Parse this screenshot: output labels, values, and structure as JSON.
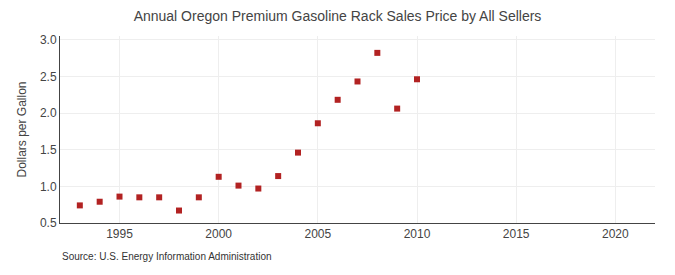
{
  "chart_data": {
    "type": "scatter",
    "title": "Annual Oregon Premium Gasoline Rack Sales Price by All Sellers",
    "y_label": "Dollars per Gallon",
    "annotations": [
      "Source: U.S. Energy Information Administration"
    ],
    "x": [
      1993,
      1994,
      1995,
      1996,
      1997,
      1998,
      1999,
      2000,
      2001,
      2002,
      2003,
      2004,
      2005,
      2006,
      2007,
      2008,
      2009,
      2010
    ],
    "values": [
      0.74,
      0.79,
      0.86,
      0.85,
      0.85,
      0.67,
      0.85,
      1.13,
      1.01,
      0.97,
      1.14,
      1.46,
      1.86,
      2.18,
      2.43,
      2.82,
      2.06,
      2.46
    ],
    "color": "#b22222",
    "marker": "square",
    "xlim": [
      1992,
      2022
    ],
    "ylim": [
      0.5,
      3.05
    ],
    "xticks": [
      1995,
      2000,
      2005,
      2010,
      2015,
      2020
    ],
    "yticks": [
      0.5,
      {
        "value": 1.0,
        "label": "1.0"
      },
      1.5,
      {
        "value": 2.0,
        "label": "2.0"
      },
      2.5,
      {
        "value": 3.0,
        "label": "3.0"
      }
    ],
    "grid": true
  }
}
